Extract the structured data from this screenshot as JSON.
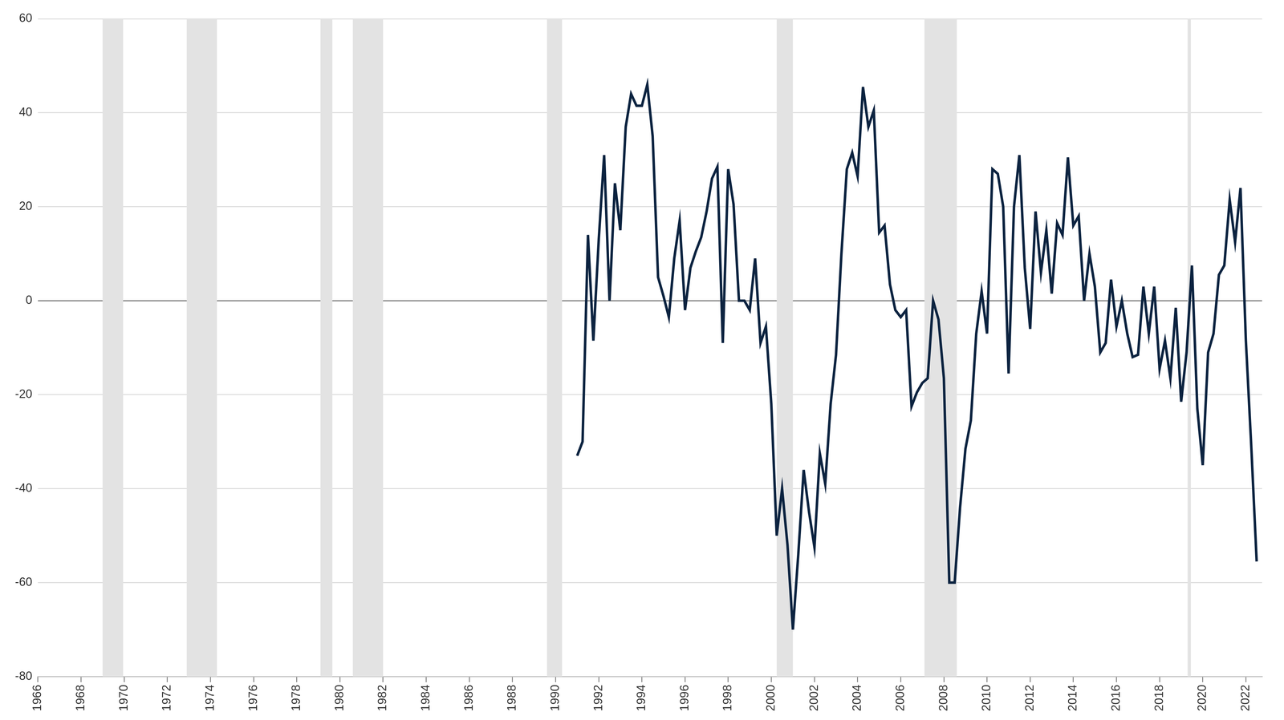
{
  "chart_data": {
    "type": "line",
    "x": [
      1991,
      1991.25,
      1991.5,
      1991.75,
      1992,
      1992.25,
      1992.5,
      1992.75,
      1993,
      1993.25,
      1993.5,
      1993.75,
      1994,
      1994.25,
      1994.5,
      1994.75,
      1995,
      1995.25,
      1995.5,
      1995.75,
      1996,
      1996.25,
      1996.5,
      1996.75,
      1997,
      1997.25,
      1997.5,
      1997.75,
      1998,
      1998.25,
      1998.5,
      1998.75,
      1999,
      1999.25,
      1999.5,
      1999.75,
      2000,
      2000.25,
      2000.5,
      2000.75,
      2001,
      2001.25,
      2001.5,
      2001.75,
      2002,
      2002.25,
      2002.5,
      2002.75,
      2003,
      2003.25,
      2003.5,
      2003.75,
      2004,
      2004.25,
      2004.5,
      2004.75,
      2005,
      2005.25,
      2005.5,
      2005.75,
      2006,
      2006.25,
      2006.5,
      2006.75,
      2007,
      2007.25,
      2007.5,
      2007.75,
      2008,
      2008.25,
      2008.5,
      2008.75,
      2009,
      2009.25,
      2009.5,
      2009.75,
      2010,
      2010.25,
      2010.5,
      2010.75,
      2011,
      2011.25,
      2011.5,
      2011.75,
      2012,
      2012.25,
      2012.5,
      2012.75,
      2013,
      2013.25,
      2013.5,
      2013.75,
      2014,
      2014.25,
      2014.5,
      2014.75,
      2015,
      2015.25,
      2015.5,
      2015.75,
      2016,
      2016.25,
      2016.5,
      2016.75,
      2017,
      2017.25,
      2017.5,
      2017.75,
      2018,
      2018.25,
      2018.5,
      2018.75,
      2019,
      2019.25,
      2019.5,
      2019.75,
      2020,
      2020.25,
      2020.5,
      2020.75,
      2021,
      2021.25,
      2021.5,
      2021.75,
      2022,
      2022.25,
      2022.5
    ],
    "values": [
      -33,
      -30,
      14,
      -8.5,
      13,
      31,
      0,
      25,
      15,
      37,
      44,
      41.5,
      41.5,
      46,
      35,
      5,
      1,
      -3.5,
      9,
      17,
      -2,
      7,
      10.5,
      13.5,
      19,
      26,
      28.5,
      -9,
      28,
      20.5,
      0,
      0,
      -2,
      9,
      -9,
      -5.5,
      -22,
      -50,
      -40,
      -52,
      -70,
      -54,
      -36,
      -45,
      -52.5,
      -32.5,
      -39,
      -22,
      -11.5,
      10,
      28,
      31.5,
      26.5,
      45.5,
      37,
      40.5,
      14.5,
      16,
      3.5,
      -2,
      -3.5,
      -2,
      -22.5,
      -19.5,
      -17.5,
      -16.5,
      0,
      -4,
      -16.5,
      -60,
      -60,
      -44,
      -31.5,
      -25.5,
      -7,
      2,
      -7,
      28,
      27,
      20,
      -15.5,
      20,
      31,
      7,
      -6,
      19,
      6,
      15,
      1.5,
      16.5,
      14,
      30.5,
      16,
      18,
      0,
      10,
      3,
      -11,
      -9,
      4.5,
      -5.5,
      0,
      -7,
      -12,
      -11.5,
      3,
      -7,
      3,
      -14.5,
      -8.5,
      -16.5,
      -1.5,
      -21.5,
      -11,
      7.5,
      -23,
      -35,
      -11,
      -7,
      5.5,
      7.5,
      21.5,
      12.5,
      24,
      -8.5,
      -31,
      -55.5
    ],
    "color": "#0c2340",
    "xlim": [
      1966,
      2022.75
    ],
    "xticks": [
      1966,
      1968,
      1970,
      1972,
      1974,
      1976,
      1978,
      1980,
      1982,
      1984,
      1986,
      1988,
      1990,
      1992,
      1994,
      1996,
      1998,
      2000,
      2002,
      2004,
      2006,
      2008,
      2010,
      2012,
      2014,
      2016,
      2018,
      2020,
      2022
    ],
    "ylim": [
      -80,
      60
    ],
    "yticks": [
      -80,
      -60,
      -40,
      -20,
      0,
      20,
      40,
      60
    ],
    "grid": true,
    "shaded_periods": [
      [
        1969.0,
        1969.95
      ],
      [
        1972.9,
        1974.3
      ],
      [
        1979.1,
        1979.65
      ],
      [
        1980.6,
        1982.0
      ],
      [
        1989.6,
        1990.3
      ],
      [
        2000.25,
        2001.0
      ],
      [
        2007.1,
        2008.6
      ],
      [
        2019.3,
        2019.45
      ]
    ]
  }
}
